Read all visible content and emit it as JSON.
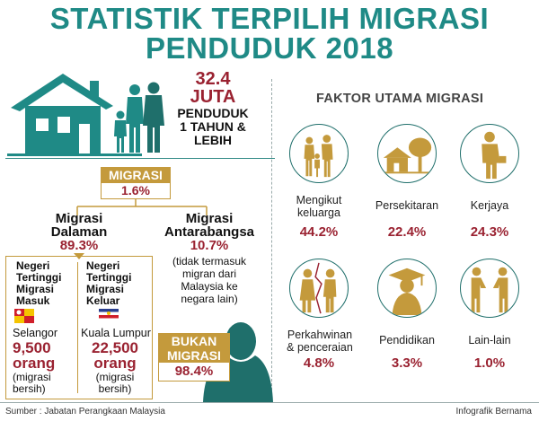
{
  "title_line1": "STATISTIK TERPILIH MIGRASI",
  "title_line2": "PENDUDUK 2018",
  "population": {
    "value": "32.4",
    "unit": "JUTA",
    "label_line1": "PENDUDUK",
    "label_line2": "1 TAHUN &",
    "label_line3": "LEBIH"
  },
  "migrasi": {
    "label": "MIGRASI",
    "value": "1.6%"
  },
  "dalaman": {
    "line1": "Migrasi",
    "line2": "Dalaman",
    "value": "89.3%"
  },
  "antarabangsa": {
    "line1": "Migrasi",
    "line2": "Antarabangsa",
    "value": "10.7%",
    "note1": "(tidak termasuk",
    "note2": "migran dari",
    "note3": "Malaysia ke",
    "note4": "negara lain)"
  },
  "masuk": {
    "h1": "Negeri",
    "h2": "Tertinggi",
    "h3": "Migrasi",
    "h4": "Masuk",
    "state": "Selangor",
    "value": "9,500",
    "unit": "orang",
    "note1": "(migrasi",
    "note2": "bersih)"
  },
  "keluar": {
    "h1": "Negeri",
    "h2": "Tertinggi",
    "h3": "Migrasi",
    "h4": "Keluar",
    "state": "Kuala Lumpur",
    "value": "22,500",
    "unit": "orang",
    "note1": "(migrasi",
    "note2": "bersih)"
  },
  "bukan": {
    "line1": "BUKAN",
    "line2": "MIGRASI",
    "value": "98.4%"
  },
  "faktor_title": "FAKTOR UTAMA MIGRASI",
  "faktor": [
    {
      "label1": "Mengikut",
      "label2": "keluarga",
      "value": "44.2%",
      "icon": "family-icon"
    },
    {
      "label1": "Persekitaran",
      "label2": "",
      "value": "22.4%",
      "icon": "house-tree-icon"
    },
    {
      "label1": "Kerjaya",
      "label2": "",
      "value": "24.3%",
      "icon": "businessman-icon"
    },
    {
      "label1": "Perkahwinan",
      "label2": "& penceraian",
      "value": "4.8%",
      "icon": "broken-couple-icon"
    },
    {
      "label1": "Pendidikan",
      "label2": "",
      "value": "3.3%",
      "icon": "graduate-icon"
    },
    {
      "label1": "Lain-lain",
      "label2": "",
      "value": "1.0%",
      "icon": "handshake-icon"
    }
  ],
  "source": "Sumber : Jabatan Perangkaan Malaysia",
  "credit": "Infografik Bernama",
  "colors": {
    "teal": "#1f8a86",
    "maroon": "#9a2231",
    "gold": "#c49a3c",
    "dark_teal": "#1f6f6b"
  }
}
